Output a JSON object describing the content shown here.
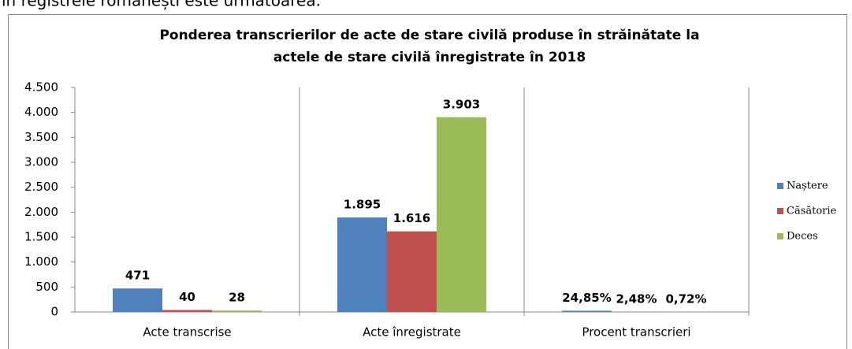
{
  "header_text": "în registrele românești este următoarea.",
  "chart_data": {
    "type": "bar",
    "title": [
      "Ponderea transcrierilor de acte de stare civilă produse în străinătate la",
      "actele de stare civilă înregistrate în 2018"
    ],
    "categories": [
      "Acte transcrise",
      "Acte înregistrate",
      "Procent transcrieri"
    ],
    "series": [
      {
        "name": "Naștere",
        "color": "#4f81bd",
        "values": [
          471,
          1895,
          24.85
        ],
        "value_labels": [
          "471",
          "1.895",
          "24,85%"
        ]
      },
      {
        "name": "Căsătorie",
        "color": "#c0504d",
        "values": [
          40,
          1616,
          2.48
        ],
        "value_labels": [
          "40",
          "1.616",
          "2,48%"
        ]
      },
      {
        "name": "Deces",
        "color": "#9bbb59",
        "values": [
          28,
          3903,
          0.72
        ],
        "value_labels": [
          "28",
          "3.903",
          "0,72%"
        ]
      }
    ],
    "ylim": [
      0,
      4500
    ],
    "yticks": [
      0,
      500,
      {
        "value": 1000,
        "label": "1.000"
      },
      {
        "value": 1500,
        "label": "1.500"
      },
      {
        "value": 2000,
        "label": "2.000"
      },
      {
        "value": 2500,
        "label": "2.500"
      },
      {
        "value": 3000,
        "label": "3.000"
      },
      {
        "value": 3500,
        "label": "3.500"
      },
      {
        "value": 4000,
        "label": "4.000"
      },
      {
        "value": 4500,
        "label": "4.500"
      }
    ],
    "grid": false,
    "legend": "right"
  }
}
